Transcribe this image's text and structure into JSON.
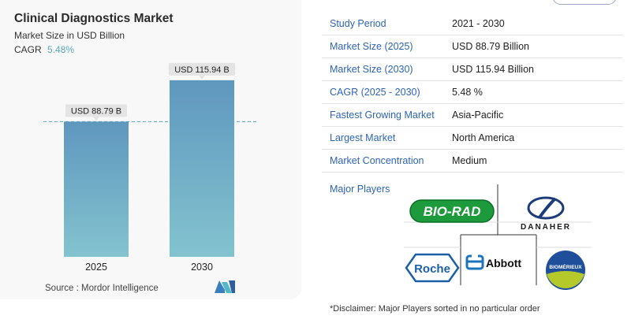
{
  "summary": {
    "title": "Clinical Diagnostics Market",
    "subtitle": "Market Size in USD Billion",
    "cagr_label": "CAGR",
    "cagr_value": "5.48%",
    "source": "Source : Mordor Intelligence"
  },
  "chart_data": {
    "type": "bar",
    "categories": [
      "2025",
      "2030"
    ],
    "values": [
      88.79,
      115.94
    ],
    "data_labels": [
      "USD 88.79 B",
      "USD 115.94 B"
    ],
    "ylim": [
      0,
      120
    ],
    "reference_line_value": 88.79,
    "bar_color_top": "#5f97be",
    "bar_color_bottom": "#83c3cf"
  },
  "details": [
    {
      "key": "Study Period",
      "value": "2021 - 2030"
    },
    {
      "key": "Market Size (2025)",
      "value": "USD 88.79 Billion"
    },
    {
      "key": "Market Size (2030)",
      "value": "USD 115.94 Billion"
    },
    {
      "key": "CAGR (2025 - 2030)",
      "value": "5.48 %"
    },
    {
      "key": "Fastest Growing Market",
      "value": "Asia-Pacific"
    },
    {
      "key": "Largest Market",
      "value": "North America"
    },
    {
      "key": "Market Concentration",
      "value": "Medium"
    }
  ],
  "players": {
    "label": "Major Players",
    "logos": [
      "BIO-RAD",
      "DANAHER",
      "Roche",
      "Abbott",
      "BIOMÉRIEUX"
    ]
  },
  "disclaimer": "*Disclaimer: Major Players sorted in no particular order"
}
